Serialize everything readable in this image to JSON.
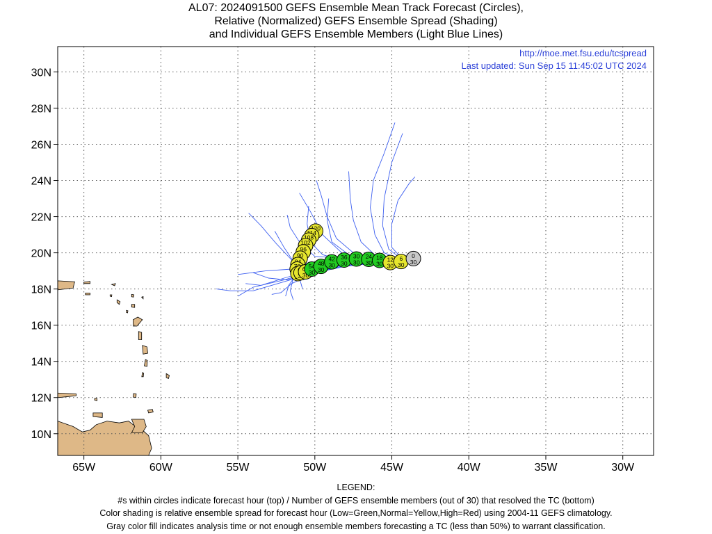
{
  "title": {
    "line1": "AL07: 2024091500 GEFS Ensemble Mean Track Forecast (Circles),",
    "line2": "Relative (Normalized) GEFS Ensemble Spread (Shading)",
    "line3": "and Individual GEFS Ensemble Members (Light Blue Lines)"
  },
  "header_links": {
    "url": "http://moe.met.fsu.edu/tcspread",
    "updated": "Last updated: Sun Sep 15 11:45:02 UTC 2024"
  },
  "axes": {
    "lon_range": [
      -66.7,
      -28.0
    ],
    "lat_range": [
      8.8,
      31.4
    ],
    "lon_ticks": [
      {
        "value": -65,
        "label": "65W"
      },
      {
        "value": -60,
        "label": "60W"
      },
      {
        "value": -55,
        "label": "55W"
      },
      {
        "value": -50,
        "label": "50W"
      },
      {
        "value": -45,
        "label": "45W"
      },
      {
        "value": -40,
        "label": "40W"
      },
      {
        "value": -35,
        "label": "35W"
      },
      {
        "value": -30,
        "label": "30W"
      }
    ],
    "lat_ticks": [
      {
        "value": 10,
        "label": "10N"
      },
      {
        "value": 12,
        "label": "12N"
      },
      {
        "value": 14,
        "label": "14N"
      },
      {
        "value": 16,
        "label": "16N"
      },
      {
        "value": 18,
        "label": "18N"
      },
      {
        "value": 20,
        "label": "20N"
      },
      {
        "value": 22,
        "label": "22N"
      },
      {
        "value": 24,
        "label": "24N"
      },
      {
        "value": 26,
        "label": "26N"
      },
      {
        "value": 28,
        "label": "28N"
      },
      {
        "value": 30,
        "label": "30N"
      }
    ],
    "grid": "dotted"
  },
  "colors": {
    "land": "#deb887",
    "member_tracks": "#3d5ff0",
    "low_spread": "#22cc22",
    "normal_spread": "#e6e62e",
    "high_spread": "#ee2222",
    "analysis": "#c8c8c8",
    "link": "#2a3fd8"
  },
  "mean_track": [
    {
      "hour": "0",
      "members": "30",
      "lon": -43.6,
      "lat": 19.68,
      "spread": "gray"
    },
    {
      "hour": "6",
      "members": "30",
      "lon": -44.4,
      "lat": 19.52,
      "spread": "yellow"
    },
    {
      "hour": "12",
      "members": "30",
      "lon": -45.1,
      "lat": 19.46,
      "spread": "yellow"
    },
    {
      "hour": "18",
      "members": "30",
      "lon": -45.8,
      "lat": 19.58,
      "spread": "green"
    },
    {
      "hour": "24",
      "members": "30",
      "lon": -46.5,
      "lat": 19.64,
      "spread": "green"
    },
    {
      "hour": "30",
      "members": "30",
      "lon": -47.3,
      "lat": 19.66,
      "spread": "green"
    },
    {
      "hour": "36",
      "members": "30",
      "lon": -48.1,
      "lat": 19.6,
      "spread": "green"
    },
    {
      "hour": "42",
      "members": "30",
      "lon": -48.9,
      "lat": 19.5,
      "spread": "green"
    },
    {
      "hour": "48",
      "members": "30",
      "lon": -49.6,
      "lat": 19.25,
      "spread": "green"
    },
    {
      "hour": "54",
      "members": "30",
      "lon": -50.2,
      "lat": 19.1,
      "spread": "green"
    },
    {
      "hour": "60",
      "members": "30",
      "lon": -50.6,
      "lat": 18.95,
      "spread": "yellow"
    },
    {
      "hour": "66",
      "members": "30",
      "lon": -50.9,
      "lat": 18.9,
      "spread": "yellow"
    },
    {
      "hour": "72",
      "members": "30",
      "lon": -51.1,
      "lat": 18.85,
      "spread": "yellow"
    },
    {
      "hour": "78",
      "members": "30",
      "lon": -51.15,
      "lat": 19.1,
      "spread": "yellow"
    },
    {
      "hour": "84",
      "members": "30",
      "lon": -51.1,
      "lat": 19.35,
      "spread": "yellow"
    },
    {
      "hour": "90",
      "members": "30",
      "lon": -50.95,
      "lat": 19.7,
      "spread": "yellow"
    },
    {
      "hour": "96",
      "members": "30",
      "lon": -50.75,
      "lat": 20.05,
      "spread": "yellow"
    },
    {
      "hour": "102",
      "members": "30",
      "lon": -50.6,
      "lat": 20.4,
      "spread": "yellow"
    },
    {
      "hour": "108",
      "members": "29",
      "lon": -50.4,
      "lat": 20.7,
      "spread": "yellow"
    },
    {
      "hour": "114",
      "members": "27",
      "lon": -50.2,
      "lat": 20.95,
      "spread": "yellow"
    },
    {
      "hour": "120",
      "members": "26",
      "lon": -49.95,
      "lat": 21.2,
      "spread": "yellow"
    }
  ],
  "member_tracks": [
    [
      [
        -44.2,
        19.55
      ],
      [
        -46,
        19.4
      ],
      [
        -48,
        19.3
      ],
      [
        -50,
        18.9
      ],
      [
        -52,
        18.4
      ],
      [
        -54,
        17.9
      ],
      [
        -55.5,
        17.9
      ],
      [
        -56.4,
        18.0
      ]
    ],
    [
      [
        -44.2,
        19.55
      ],
      [
        -46,
        19.5
      ],
      [
        -48,
        19.4
      ],
      [
        -50,
        19.0
      ],
      [
        -52,
        18.5
      ],
      [
        -54,
        18.1
      ],
      [
        -55,
        17.6
      ]
    ],
    [
      [
        -44.2,
        19.55
      ],
      [
        -46,
        19.5
      ],
      [
        -48,
        19.5
      ],
      [
        -50,
        19.1
      ],
      [
        -52,
        18.6
      ],
      [
        -53.5,
        18.2
      ],
      [
        -54.5,
        18.3
      ]
    ],
    [
      [
        -44.2,
        19.55
      ],
      [
        -46,
        19.6
      ],
      [
        -48,
        19.6
      ],
      [
        -50,
        19.3
      ],
      [
        -51.5,
        19.6
      ],
      [
        -52.5,
        20.5
      ],
      [
        -53.5,
        21.5
      ],
      [
        -54.3,
        22.2
      ]
    ],
    [
      [
        -44.2,
        19.55
      ],
      [
        -46,
        19.6
      ],
      [
        -48,
        19.7
      ],
      [
        -50,
        19.8
      ],
      [
        -51,
        20.6
      ],
      [
        -51.6,
        21.4
      ],
      [
        -51.8,
        22.1
      ]
    ],
    [
      [
        -44.2,
        19.55
      ],
      [
        -46,
        19.7
      ],
      [
        -47.5,
        20.0
      ],
      [
        -48.6,
        20.8
      ],
      [
        -49.2,
        22.0
      ],
      [
        -49.6,
        23.2
      ],
      [
        -49.9,
        24.0
      ]
    ],
    [
      [
        -44.2,
        19.55
      ],
      [
        -46,
        19.8
      ],
      [
        -47,
        20.6
      ],
      [
        -47.5,
        21.8
      ],
      [
        -47.7,
        23.0
      ],
      [
        -47.8,
        24.5
      ]
    ],
    [
      [
        -44.2,
        19.55
      ],
      [
        -45.5,
        20.0
      ],
      [
        -46.1,
        21.0
      ],
      [
        -46.4,
        22.5
      ],
      [
        -46.2,
        24.0
      ],
      [
        -45.5,
        25.5
      ],
      [
        -44.8,
        27.2
      ]
    ],
    [
      [
        -44.2,
        19.55
      ],
      [
        -45.2,
        20.2
      ],
      [
        -45.6,
        21.5
      ],
      [
        -45.5,
        23.0
      ],
      [
        -45.0,
        25.0
      ],
      [
        -44.3,
        26.6
      ]
    ],
    [
      [
        -44.2,
        19.55
      ],
      [
        -45.0,
        20.3
      ],
      [
        -45.0,
        21.6
      ],
      [
        -44.6,
        22.9
      ],
      [
        -43.9,
        23.8
      ],
      [
        -43.5,
        24.2
      ]
    ],
    [
      [
        -44.2,
        19.55
      ],
      [
        -46,
        19.6
      ],
      [
        -48,
        19.8
      ],
      [
        -49.5,
        21.0
      ],
      [
        -50.3,
        22.3
      ],
      [
        -51.0,
        23.3
      ]
    ],
    [
      [
        -44.2,
        19.55
      ],
      [
        -46,
        19.5
      ],
      [
        -48,
        19.4
      ],
      [
        -50,
        19.2
      ],
      [
        -51.2,
        18.8
      ],
      [
        -51.7,
        18.2
      ],
      [
        -51.9,
        17.6
      ]
    ],
    [
      [
        -44.2,
        19.55
      ],
      [
        -46,
        19.45
      ],
      [
        -48,
        19.25
      ],
      [
        -50,
        18.9
      ],
      [
        -51.5,
        18.3
      ],
      [
        -52.2,
        17.8
      ],
      [
        -52.8,
        17.7
      ]
    ],
    [
      [
        -44.2,
        19.55
      ],
      [
        -46,
        19.45
      ],
      [
        -48,
        19.3
      ],
      [
        -50,
        18.95
      ],
      [
        -51.8,
        18.5
      ],
      [
        -53.0,
        18.6
      ],
      [
        -54.0,
        18.9
      ]
    ],
    [
      [
        -44.2,
        19.55
      ],
      [
        -46,
        19.5
      ],
      [
        -48,
        19.45
      ],
      [
        -50,
        19.2
      ],
      [
        -51.3,
        19.4
      ],
      [
        -52.0,
        20.3
      ],
      [
        -52.6,
        21.2
      ]
    ],
    [
      [
        -44.2,
        19.55
      ],
      [
        -46,
        19.55
      ],
      [
        -48,
        19.5
      ],
      [
        -49.5,
        19.9
      ],
      [
        -50.3,
        20.6
      ],
      [
        -50.5,
        21.6
      ],
      [
        -50.4,
        22.6
      ]
    ],
    [
      [
        -44.2,
        19.55
      ],
      [
        -46,
        19.6
      ],
      [
        -47.8,
        19.9
      ],
      [
        -48.9,
        20.6
      ],
      [
        -49.2,
        21.8
      ],
      [
        -49.1,
        23.0
      ]
    ],
    [
      [
        -44.2,
        19.55
      ],
      [
        -46,
        19.5
      ],
      [
        -48,
        19.35
      ],
      [
        -50,
        19.0
      ],
      [
        -51.4,
        18.6
      ],
      [
        -51.6,
        17.9
      ],
      [
        -51.4,
        17.4
      ]
    ],
    [
      [
        -44.2,
        19.55
      ],
      [
        -46,
        19.5
      ],
      [
        -48,
        19.4
      ],
      [
        -50,
        19.1
      ],
      [
        -51.0,
        18.6
      ],
      [
        -50.8,
        18.0
      ]
    ],
    [
      [
        -44.2,
        19.55
      ],
      [
        -46,
        19.55
      ],
      [
        -48,
        19.5
      ],
      [
        -50,
        19.3
      ],
      [
        -51.5,
        19.1
      ],
      [
        -53.2,
        19.0
      ],
      [
        -55.0,
        18.8
      ]
    ]
  ],
  "land": [
    {
      "name": "south-america",
      "points": [
        [
          -66.7,
          10.7
        ],
        [
          -65.7,
          10.4
        ],
        [
          -65.1,
          10.1
        ],
        [
          -64.6,
          10.2
        ],
        [
          -64.2,
          10.5
        ],
        [
          -63.5,
          10.7
        ],
        [
          -62.7,
          10.6
        ],
        [
          -62.1,
          10.7
        ],
        [
          -61.8,
          10.5
        ],
        [
          -61.2,
          10.2
        ],
        [
          -60.8,
          9.9
        ],
        [
          -60.6,
          9.2
        ],
        [
          -60.8,
          8.8
        ],
        [
          -66.7,
          8.8
        ]
      ]
    },
    {
      "name": "trinidad",
      "points": [
        [
          -61.9,
          10.8
        ],
        [
          -61.1,
          10.8
        ],
        [
          -60.95,
          10.4
        ],
        [
          -61.2,
          10.05
        ],
        [
          -61.9,
          10.05
        ],
        [
          -61.7,
          10.4
        ]
      ]
    },
    {
      "name": "puerto-rico",
      "points": [
        [
          -66.7,
          18.45
        ],
        [
          -65.6,
          18.4
        ],
        [
          -65.7,
          18.05
        ],
        [
          -66.7,
          17.95
        ]
      ]
    },
    {
      "name": "margarita",
      "points": [
        [
          -64.4,
          11.15
        ],
        [
          -63.8,
          11.15
        ],
        [
          -63.8,
          10.9
        ],
        [
          -64.4,
          10.95
        ]
      ]
    },
    {
      "name": "tobago",
      "points": [
        [
          -60.85,
          11.3
        ],
        [
          -60.55,
          11.35
        ],
        [
          -60.5,
          11.2
        ],
        [
          -60.8,
          11.15
        ]
      ]
    },
    {
      "name": "guadeloupe",
      "points": [
        [
          -61.8,
          16.3
        ],
        [
          -61.5,
          16.45
        ],
        [
          -61.2,
          16.3
        ],
        [
          -61.55,
          15.95
        ],
        [
          -61.8,
          15.95
        ]
      ]
    },
    {
      "name": "dominica",
      "points": [
        [
          -61.45,
          15.65
        ],
        [
          -61.25,
          15.6
        ],
        [
          -61.25,
          15.2
        ],
        [
          -61.45,
          15.2
        ]
      ]
    },
    {
      "name": "martinique",
      "points": [
        [
          -61.2,
          14.88
        ],
        [
          -60.9,
          14.8
        ],
        [
          -60.85,
          14.45
        ],
        [
          -61.15,
          14.4
        ]
      ]
    },
    {
      "name": "st-lucia",
      "points": [
        [
          -61.0,
          14.1
        ],
        [
          -60.88,
          14.05
        ],
        [
          -60.9,
          13.72
        ],
        [
          -61.08,
          13.75
        ]
      ]
    },
    {
      "name": "st-vincent",
      "points": [
        [
          -61.2,
          13.38
        ],
        [
          -61.12,
          13.35
        ],
        [
          -61.14,
          13.15
        ],
        [
          -61.24,
          13.15
        ]
      ]
    },
    {
      "name": "grenada",
      "points": [
        [
          -61.78,
          12.22
        ],
        [
          -61.6,
          12.2
        ],
        [
          -61.62,
          12.0
        ],
        [
          -61.8,
          12.02
        ]
      ]
    },
    {
      "name": "barbados",
      "points": [
        [
          -59.65,
          13.32
        ],
        [
          -59.45,
          13.22
        ],
        [
          -59.5,
          13.05
        ],
        [
          -59.65,
          13.1
        ]
      ]
    },
    {
      "name": "antigua",
      "points": [
        [
          -61.9,
          17.15
        ],
        [
          -61.7,
          17.15
        ],
        [
          -61.7,
          16.98
        ],
        [
          -61.9,
          17.0
        ]
      ]
    },
    {
      "name": "st-kitts",
      "points": [
        [
          -62.85,
          17.4
        ],
        [
          -62.65,
          17.3
        ],
        [
          -62.7,
          17.15
        ],
        [
          -62.85,
          17.25
        ]
      ]
    },
    {
      "name": "barbuda",
      "points": [
        [
          -61.9,
          17.7
        ],
        [
          -61.75,
          17.68
        ],
        [
          -61.78,
          17.55
        ],
        [
          -61.9,
          17.57
        ]
      ]
    },
    {
      "name": "st-croix",
      "points": [
        [
          -64.9,
          17.78
        ],
        [
          -64.6,
          17.78
        ],
        [
          -64.6,
          17.68
        ],
        [
          -64.9,
          17.68
        ]
      ]
    },
    {
      "name": "virgin-islands",
      "points": [
        [
          -65.0,
          18.38
        ],
        [
          -64.6,
          18.42
        ],
        [
          -64.6,
          18.3
        ],
        [
          -65.0,
          18.3
        ]
      ]
    },
    {
      "name": "anguilla",
      "points": [
        [
          -63.2,
          18.25
        ],
        [
          -62.95,
          18.3
        ],
        [
          -63.0,
          18.18
        ]
      ]
    },
    {
      "name": "saba",
      "points": [
        [
          -63.3,
          17.68
        ],
        [
          -63.18,
          17.68
        ],
        [
          -63.2,
          17.58
        ],
        [
          -63.3,
          17.6
        ]
      ]
    },
    {
      "name": "montserrat",
      "points": [
        [
          -62.24,
          16.82
        ],
        [
          -62.14,
          16.8
        ],
        [
          -62.16,
          16.68
        ],
        [
          -62.24,
          16.7
        ]
      ]
    },
    {
      "name": "bonaire",
      "points": [
        [
          -68.0,
          12.3
        ],
        [
          -65.5,
          12.2
        ],
        [
          -65.5,
          12.1
        ],
        [
          -66.6,
          12.0
        ]
      ]
    },
    {
      "name": "tiny-1",
      "points": [
        [
          -64.3,
          11.95
        ],
        [
          -64.15,
          11.95
        ],
        [
          -64.15,
          11.82
        ],
        [
          -64.3,
          11.85
        ]
      ]
    },
    {
      "name": "tiny-2",
      "points": [
        [
          -61.25,
          17.55
        ],
        [
          -61.15,
          17.58
        ],
        [
          -61.15,
          17.46
        ]
      ]
    }
  ]
}
